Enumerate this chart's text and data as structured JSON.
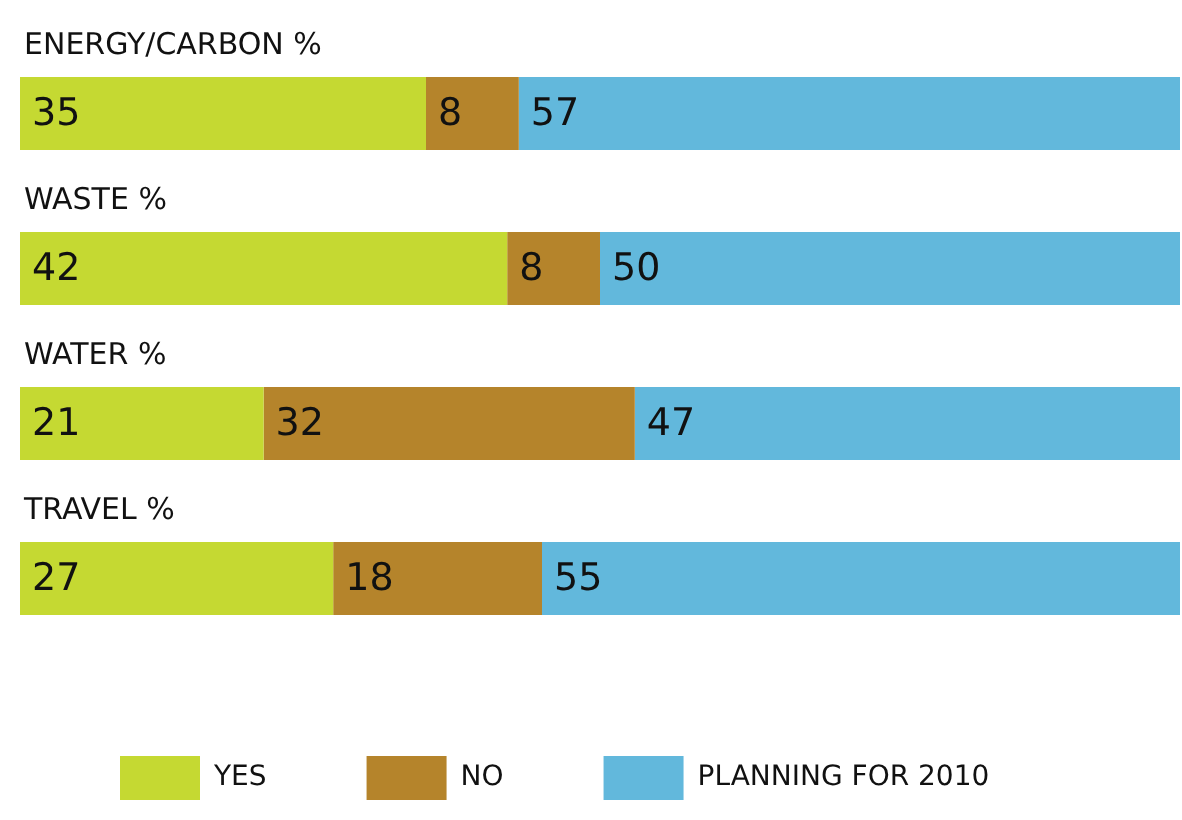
{
  "chart_data": {
    "type": "bar",
    "orientation": "horizontal",
    "stacked": true,
    "data_labels": true,
    "legend": "bottom",
    "tick_labels": false,
    "categories": [
      "ENERGY/CARBON %",
      "WASTE %",
      "WATER %",
      "TRAVEL %"
    ],
    "series": [
      {
        "name": "YES",
        "color": "#c5d932",
        "values": [
          35,
          42,
          21,
          27
        ]
      },
      {
        "name": "NO",
        "color": "#b5842b",
        "values": [
          8,
          8,
          32,
          18
        ]
      },
      {
        "name": "PLANNING FOR 2010",
        "color": "#62b8dc",
        "values": [
          57,
          50,
          47,
          55
        ]
      }
    ]
  }
}
